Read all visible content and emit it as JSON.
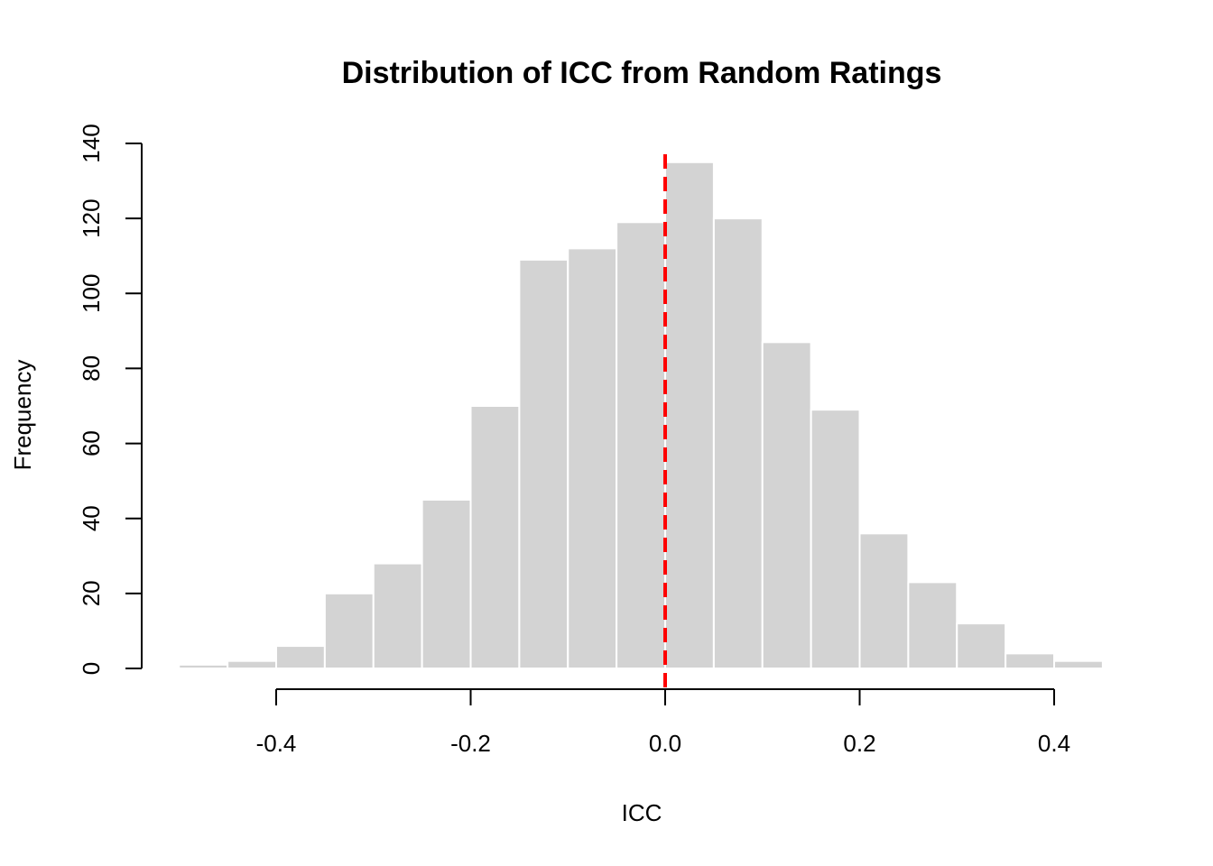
{
  "chart_data": {
    "type": "bar",
    "title": "Distribution of ICC from Random Ratings",
    "xlabel": "ICC",
    "ylabel": "Frequency",
    "bin_edges": [
      -0.5,
      -0.45,
      -0.4,
      -0.35,
      -0.3,
      -0.25,
      -0.2,
      -0.15,
      -0.1,
      -0.05,
      0.0,
      0.05,
      0.1,
      0.15,
      0.2,
      0.25,
      0.3,
      0.35,
      0.4,
      0.45
    ],
    "values": [
      1,
      2,
      6,
      20,
      28,
      45,
      70,
      109,
      112,
      119,
      135,
      120,
      87,
      69,
      36,
      23,
      12,
      4,
      2
    ],
    "xlim": [
      -0.5,
      0.45
    ],
    "ylim": [
      0,
      140
    ],
    "xticks": [
      -0.4,
      -0.2,
      0.0,
      0.2,
      0.4
    ],
    "xtick_labels": [
      "-0.4",
      "-0.2",
      "0.0",
      "0.2",
      "0.4"
    ],
    "yticks": [
      0,
      20,
      40,
      60,
      80,
      100,
      120,
      140
    ],
    "ytick_labels": [
      "0",
      "20",
      "40",
      "60",
      "80",
      "100",
      "120",
      "140"
    ],
    "bar_color": "#d3d3d3",
    "reference_line": {
      "x": 0.0,
      "color": "#ff0000",
      "style": "dashed"
    },
    "grid": false
  }
}
